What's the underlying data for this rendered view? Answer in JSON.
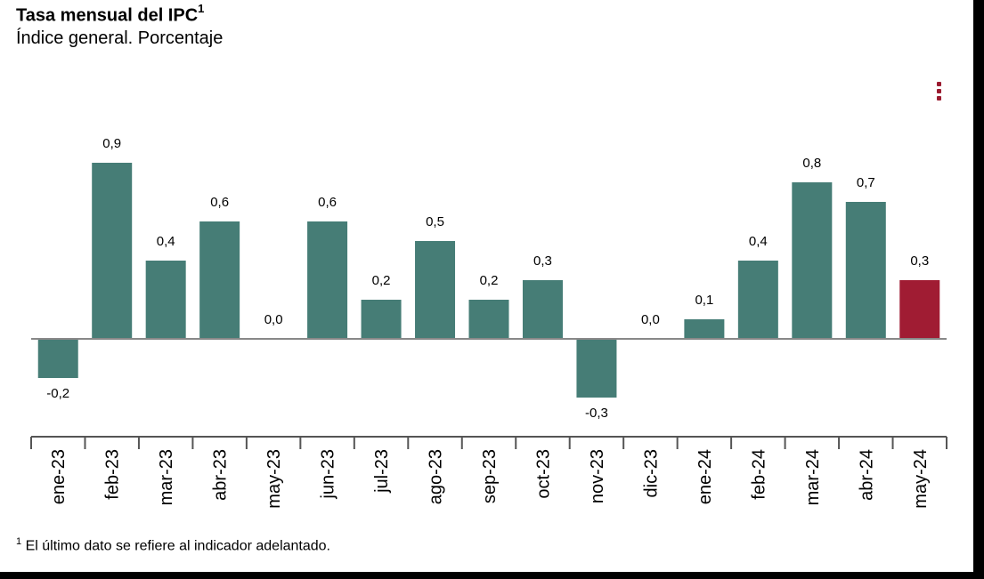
{
  "header": {
    "title": "Tasa mensual del IPC",
    "title_sup": "1",
    "subtitle": "Índice general. Porcentaje"
  },
  "menu": {
    "icon": "kebab-menu-icon"
  },
  "footnote": {
    "sup": "1",
    "text": " El último dato se refiere al indicador adelantado."
  },
  "chart_data": {
    "type": "bar",
    "title": "Tasa mensual del IPC",
    "subtitle": "Índice general. Porcentaje",
    "categories": [
      "ene-23",
      "feb-23",
      "mar-23",
      "abr-23",
      "may-23",
      "jun-23",
      "jul-23",
      "ago-23",
      "sep-23",
      "oct-23",
      "nov-23",
      "dic-23",
      "ene-24",
      "feb-24",
      "mar-24",
      "abr-24",
      "may-24"
    ],
    "values": [
      -0.2,
      0.9,
      0.4,
      0.6,
      0.0,
      0.6,
      0.2,
      0.5,
      0.2,
      0.3,
      -0.3,
      0.0,
      0.1,
      0.4,
      0.8,
      0.7,
      0.3
    ],
    "labels": [
      "-0,2",
      "0,9",
      "0,4",
      "0,6",
      "0,0",
      "0,6",
      "0,2",
      "0,5",
      "0,2",
      "0,3",
      "-0,3",
      "0,0",
      "0,1",
      "0,4",
      "0,8",
      "0,7",
      "0,3"
    ],
    "ylim": [
      -0.5,
      1.0
    ],
    "grid": false,
    "legend": "none",
    "colors": {
      "bar": "#467d76",
      "highlight": "#a01c33"
    },
    "highlight_index": 16
  }
}
